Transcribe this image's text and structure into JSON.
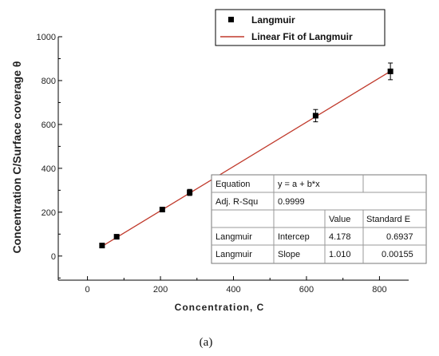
{
  "chart_data": {
    "type": "scatter",
    "xlabel": "Concentration, C",
    "ylabel": "Concentration C/Surface coverage θ",
    "xlim": [
      -80,
      880
    ],
    "ylim": [
      -110,
      1000
    ],
    "xticks": [
      "0",
      "200",
      "400",
      "600",
      "800"
    ],
    "yticks": [
      "0",
      "200",
      "400",
      "600",
      "800",
      "1000"
    ],
    "grid": false,
    "legend_position": "top-right",
    "series": [
      {
        "name": "Langmuir",
        "marker": "square",
        "color": "#000000",
        "x": [
          40,
          80,
          205,
          280,
          625,
          830
        ],
        "y": [
          48,
          88,
          212,
          290,
          640,
          842
        ],
        "yerr": [
          0,
          0,
          0,
          14,
          28,
          38
        ]
      },
      {
        "name": "Linear Fit of Langmuir",
        "kind": "line",
        "color": "#c0392b",
        "intercept": 4.178,
        "slope": 1.01,
        "x_range": [
          40,
          830
        ]
      }
    ],
    "fit_table": [
      [
        "Equation",
        "y = a + b*x",
        ""
      ],
      [
        "Adj. R-Squ",
        "0.9999",
        ""
      ],
      [
        "",
        "",
        "Value",
        "Standard E"
      ],
      [
        "Langmuir",
        "Intercep",
        "4.178",
        "0.6937"
      ],
      [
        "Langmuir",
        "Slope",
        "1.010",
        "0.00155"
      ]
    ]
  },
  "caption": "(a)"
}
